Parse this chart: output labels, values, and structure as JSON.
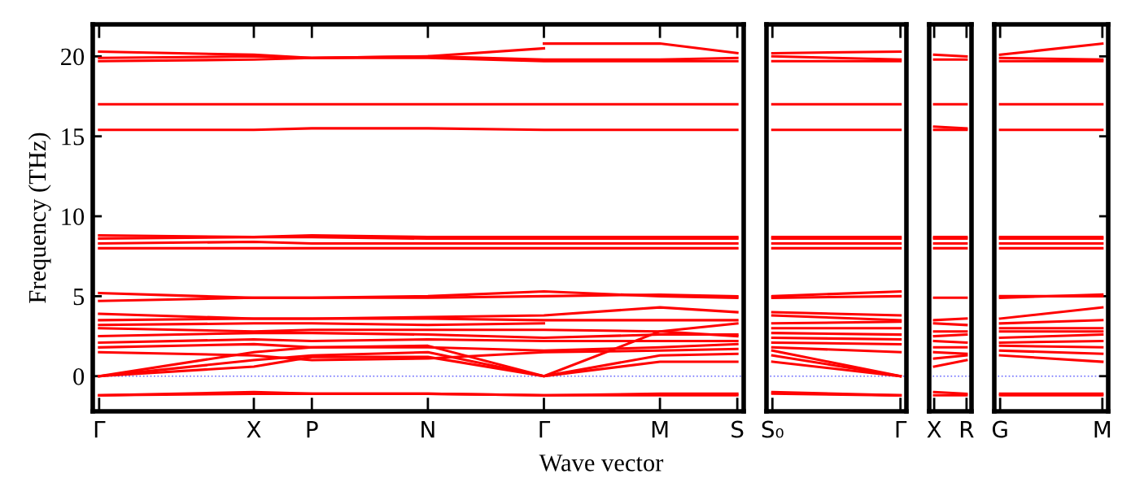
{
  "chart_data": [
    {
      "type": "line",
      "ylabel": "Frequency (THz)",
      "xlabel": "Wave vector",
      "color": "#ff0000",
      "ylim": [
        -2.2,
        22
      ],
      "yticks": [
        0,
        5,
        10,
        15,
        20
      ],
      "categories": [
        "Γ",
        null,
        null,
        null,
        null,
        null,
        null,
        null,
        "X",
        null,
        null,
        "P",
        null,
        null,
        null,
        null,
        null,
        "N",
        null,
        null,
        null,
        null,
        null,
        "Γ",
        null,
        null,
        null,
        null,
        null,
        "M",
        null,
        null,
        null,
        "S"
      ],
      "grid": false,
      "marker": "none",
      "line_style": "solid",
      "ref_lines": [
        {
          "axis": "y",
          "value": 0,
          "color": "#6666ff",
          "line_style": "dotted"
        }
      ],
      "series": [
        {
          "values": [
            -1.2,
            null,
            null,
            null,
            null,
            null,
            null,
            null,
            -1.0,
            null,
            null,
            -1.1,
            null,
            null,
            null,
            null,
            null,
            -1.1,
            null,
            null,
            null,
            null,
            null,
            -1.2,
            null,
            null,
            null,
            null,
            null,
            -1.1,
            null,
            null,
            null,
            -1.1
          ]
        },
        {
          "values": [
            -1.2,
            null,
            null,
            null,
            null,
            null,
            null,
            null,
            -1.1,
            null,
            null,
            -1.1,
            null,
            null,
            null,
            null,
            null,
            -1.1,
            null,
            null,
            null,
            null,
            null,
            -1.2,
            null,
            null,
            null,
            null,
            null,
            -1.2,
            null,
            null,
            null,
            -1.2
          ]
        },
        {
          "values": [
            0,
            null,
            null,
            null,
            null,
            null,
            null,
            null,
            0.6,
            null,
            null,
            1.2,
            null,
            null,
            null,
            null,
            null,
            1.2,
            null,
            null,
            null,
            null,
            null,
            0,
            null,
            null,
            null,
            null,
            null,
            2.8,
            null,
            null,
            null,
            3.3
          ]
        },
        {
          "values": [
            0,
            null,
            null,
            null,
            null,
            null,
            null,
            null,
            1.0,
            null,
            null,
            1.3,
            null,
            null,
            null,
            null,
            null,
            1.5,
            null,
            null,
            null,
            null,
            null,
            0,
            null,
            null,
            null,
            null,
            null,
            0.9,
            null,
            null,
            null,
            0.9
          ]
        },
        {
          "values": [
            0,
            null,
            null,
            null,
            null,
            null,
            null,
            null,
            1.5,
            null,
            null,
            1.8,
            null,
            null,
            null,
            null,
            null,
            1.9,
            null,
            null,
            null,
            null,
            null,
            0,
            null,
            null,
            null,
            null,
            null,
            1.3,
            null,
            null,
            null,
            1.4
          ]
        },
        {
          "values": [
            1.5,
            null,
            null,
            null,
            null,
            null,
            null,
            null,
            1.3,
            null,
            null,
            1.0,
            null,
            null,
            null,
            null,
            null,
            1.1,
            null,
            null,
            null,
            null,
            null,
            1.5,
            null,
            null,
            null,
            null,
            null,
            1.6,
            null,
            null,
            null,
            1.7
          ]
        },
        {
          "values": [
            1.8,
            null,
            null,
            null,
            null,
            null,
            null,
            null,
            2.0,
            null,
            null,
            1.8,
            null,
            null,
            null,
            null,
            null,
            1.8,
            null,
            null,
            null,
            null,
            null,
            1.6,
            null,
            null,
            null,
            null,
            null,
            1.8,
            null,
            null,
            null,
            2.0
          ]
        },
        {
          "values": [
            2.1,
            null,
            null,
            null,
            null,
            null,
            null,
            null,
            2.3,
            null,
            null,
            2.2,
            null,
            null,
            null,
            null,
            null,
            2.3,
            null,
            null,
            null,
            null,
            null,
            2.2,
            null,
            null,
            null,
            null,
            null,
            2.2,
            null,
            null,
            null,
            2.2
          ]
        },
        {
          "values": [
            2.5,
            null,
            null,
            null,
            null,
            null,
            null,
            null,
            2.7,
            null,
            null,
            2.7,
            null,
            null,
            null,
            null,
            null,
            2.6,
            null,
            null,
            null,
            null,
            null,
            2.4,
            null,
            null,
            null,
            null,
            null,
            2.6,
            null,
            null,
            null,
            2.6
          ]
        },
        {
          "values": [
            3.0,
            null,
            null,
            null,
            null,
            null,
            null,
            null,
            2.8,
            null,
            null,
            2.9,
            null,
            null,
            null,
            null,
            null,
            2.9,
            null,
            null,
            null,
            null,
            null,
            2.9,
            null,
            null,
            null,
            null,
            null,
            2.8,
            null,
            null,
            null,
            2.5
          ]
        },
        {
          "values": [
            3.2,
            null,
            null,
            null,
            null,
            null,
            null,
            null,
            3.3,
            null,
            null,
            3.3,
            null,
            null,
            null,
            null,
            null,
            3.2,
            null,
            null,
            null,
            null,
            null,
            3.3,
            null,
            null,
            null,
            null,
            null,
            null,
            null,
            null,
            null,
            null
          ]
        },
        {
          "values": [
            3.5,
            null,
            null,
            null,
            null,
            null,
            null,
            null,
            3.6,
            null,
            null,
            3.6,
            null,
            null,
            null,
            null,
            null,
            3.6,
            null,
            null,
            null,
            null,
            null,
            3.5,
            null,
            null,
            null,
            null,
            null,
            3.5,
            null,
            null,
            null,
            3.5
          ]
        },
        {
          "values": [
            3.9,
            null,
            null,
            null,
            null,
            null,
            null,
            null,
            3.6,
            null,
            null,
            3.6,
            null,
            null,
            null,
            null,
            null,
            3.7,
            null,
            null,
            null,
            null,
            null,
            3.8,
            null,
            null,
            null,
            null,
            null,
            4.3,
            null,
            null,
            null,
            4.0
          ]
        },
        {
          "values": [
            4.7,
            null,
            null,
            null,
            null,
            null,
            null,
            null,
            4.9,
            null,
            null,
            4.9,
            null,
            null,
            null,
            null,
            null,
            4.9,
            null,
            null,
            null,
            null,
            null,
            5.0,
            null,
            null,
            null,
            null,
            null,
            5.1,
            null,
            null,
            null,
            5.0
          ]
        },
        {
          "values": [
            5.2,
            null,
            null,
            null,
            null,
            null,
            null,
            null,
            4.9,
            null,
            null,
            4.9,
            null,
            null,
            null,
            null,
            null,
            5.0,
            null,
            null,
            null,
            null,
            null,
            5.3,
            null,
            null,
            null,
            null,
            null,
            5.0,
            null,
            null,
            null,
            4.9
          ]
        },
        {
          "values": [
            8.0,
            null,
            null,
            null,
            null,
            null,
            null,
            null,
            8.0,
            null,
            null,
            8.0,
            null,
            null,
            null,
            null,
            null,
            8.0,
            null,
            null,
            null,
            null,
            null,
            8.0,
            null,
            null,
            null,
            null,
            null,
            8.0,
            null,
            null,
            null,
            8.0
          ]
        },
        {
          "values": [
            8.3,
            null,
            null,
            null,
            null,
            null,
            null,
            null,
            8.4,
            null,
            null,
            8.3,
            null,
            null,
            null,
            null,
            null,
            8.3,
            null,
            null,
            null,
            null,
            null,
            8.3,
            null,
            null,
            null,
            null,
            null,
            8.3,
            null,
            null,
            null,
            8.3
          ]
        },
        {
          "values": [
            8.6,
            null,
            null,
            null,
            null,
            null,
            null,
            null,
            8.7,
            null,
            null,
            8.7,
            null,
            null,
            null,
            null,
            null,
            8.6,
            null,
            null,
            null,
            null,
            null,
            8.6,
            null,
            null,
            null,
            null,
            null,
            8.6,
            null,
            null,
            null,
            8.6
          ]
        },
        {
          "values": [
            8.8,
            null,
            null,
            null,
            null,
            null,
            null,
            null,
            8.7,
            null,
            null,
            8.8,
            null,
            null,
            null,
            null,
            null,
            8.7,
            null,
            null,
            null,
            null,
            null,
            8.7,
            null,
            null,
            null,
            null,
            null,
            8.7,
            null,
            null,
            null,
            8.7
          ]
        },
        {
          "values": [
            15.4,
            null,
            null,
            null,
            null,
            null,
            null,
            null,
            15.4,
            null,
            null,
            15.5,
            null,
            null,
            null,
            null,
            null,
            15.5,
            null,
            null,
            null,
            null,
            null,
            15.4,
            null,
            null,
            null,
            null,
            null,
            15.4,
            null,
            null,
            null,
            15.4
          ]
        },
        {
          "values": [
            17.0,
            null,
            null,
            null,
            null,
            null,
            null,
            null,
            17.0,
            null,
            null,
            17.0,
            null,
            null,
            null,
            null,
            null,
            17.0,
            null,
            null,
            null,
            null,
            null,
            17.0,
            null,
            null,
            null,
            null,
            null,
            17.0,
            null,
            null,
            null,
            17.0
          ]
        },
        {
          "values": [
            19.7,
            null,
            null,
            null,
            null,
            null,
            null,
            null,
            19.8,
            null,
            null,
            19.9,
            null,
            null,
            null,
            null,
            null,
            19.9,
            null,
            null,
            null,
            null,
            null,
            19.7,
            null,
            null,
            null,
            null,
            null,
            19.7,
            null,
            null,
            null,
            19.7
          ]
        },
        {
          "values": [
            19.9,
            null,
            null,
            null,
            null,
            null,
            null,
            null,
            20.0,
            null,
            null,
            19.9,
            null,
            null,
            null,
            null,
            null,
            20.0,
            null,
            null,
            null,
            null,
            null,
            19.8,
            null,
            null,
            null,
            null,
            null,
            19.8,
            null,
            null,
            null,
            19.9
          ]
        },
        {
          "values": [
            20.3,
            null,
            null,
            null,
            null,
            null,
            null,
            null,
            20.1,
            null,
            null,
            19.9,
            null,
            null,
            null,
            null,
            null,
            20.0,
            null,
            null,
            null,
            null,
            null,
            20.5,
            null,
            null,
            null,
            null,
            null,
            null,
            null,
            null,
            null,
            null
          ]
        },
        {
          "values": [
            null,
            null,
            null,
            null,
            null,
            null,
            null,
            null,
            null,
            null,
            null,
            null,
            null,
            null,
            null,
            null,
            null,
            null,
            null,
            null,
            null,
            null,
            null,
            20.8,
            null,
            null,
            null,
            null,
            null,
            20.8,
            null,
            null,
            null,
            20.2
          ]
        }
      ]
    },
    {
      "type": "line",
      "color": "#ff0000",
      "ylim": [
        -2.2,
        22
      ],
      "tick_labels": "x",
      "categories": [
        "S₀",
        null,
        null,
        null,
        null,
        null,
        null,
        null,
        null,
        null,
        null,
        null,
        null,
        null,
        "Γ"
      ],
      "grid": false,
      "marker": "none",
      "line_style": "solid",
      "ref_lines": [
        {
          "axis": "y",
          "value": 0,
          "color": "#6666ff",
          "line_style": "dotted"
        }
      ],
      "series": [
        {
          "values": [
            -1.0,
            null,
            null,
            null,
            null,
            null,
            null,
            null,
            null,
            null,
            null,
            null,
            null,
            null,
            -1.2
          ]
        },
        {
          "values": [
            -1.1,
            null,
            null,
            null,
            null,
            null,
            null,
            null,
            null,
            null,
            null,
            null,
            null,
            null,
            -1.2
          ]
        },
        {
          "values": [
            0.9,
            null,
            null,
            null,
            null,
            null,
            null,
            null,
            null,
            null,
            null,
            null,
            null,
            null,
            0
          ]
        },
        {
          "values": [
            1.3,
            null,
            null,
            null,
            null,
            null,
            null,
            null,
            null,
            null,
            null,
            null,
            null,
            null,
            0
          ]
        },
        {
          "values": [
            1.6,
            null,
            null,
            null,
            null,
            null,
            null,
            null,
            null,
            null,
            null,
            null,
            null,
            null,
            0
          ]
        },
        {
          "values": [
            1.8,
            null,
            null,
            null,
            null,
            null,
            null,
            null,
            null,
            null,
            null,
            null,
            null,
            null,
            1.5
          ]
        },
        {
          "values": [
            2.1,
            null,
            null,
            null,
            null,
            null,
            null,
            null,
            null,
            null,
            null,
            null,
            null,
            null,
            2.0
          ]
        },
        {
          "values": [
            2.4,
            null,
            null,
            null,
            null,
            null,
            null,
            null,
            null,
            null,
            null,
            null,
            null,
            null,
            2.3
          ]
        },
        {
          "values": [
            2.7,
            null,
            null,
            null,
            null,
            null,
            null,
            null,
            null,
            null,
            null,
            null,
            null,
            null,
            2.6
          ]
        },
        {
          "values": [
            3.0,
            null,
            null,
            null,
            null,
            null,
            null,
            null,
            null,
            null,
            null,
            null,
            null,
            null,
            3.0
          ]
        },
        {
          "values": [
            3.3,
            null,
            null,
            null,
            null,
            null,
            null,
            null,
            null,
            null,
            null,
            null,
            null,
            null,
            3.4
          ]
        },
        {
          "values": [
            3.8,
            null,
            null,
            null,
            null,
            null,
            null,
            null,
            null,
            null,
            null,
            null,
            null,
            null,
            3.5
          ]
        },
        {
          "values": [
            4.0,
            null,
            null,
            null,
            null,
            null,
            null,
            null,
            null,
            null,
            null,
            null,
            null,
            null,
            3.8
          ]
        },
        {
          "values": [
            4.9,
            null,
            null,
            null,
            null,
            null,
            null,
            null,
            null,
            null,
            null,
            null,
            null,
            null,
            5.0
          ]
        },
        {
          "values": [
            5.0,
            null,
            null,
            null,
            null,
            null,
            null,
            null,
            null,
            null,
            null,
            null,
            null,
            null,
            5.3
          ]
        },
        {
          "values": [
            8.0,
            null,
            null,
            null,
            null,
            null,
            null,
            null,
            null,
            null,
            null,
            null,
            null,
            null,
            8.0
          ]
        },
        {
          "values": [
            8.3,
            null,
            null,
            null,
            null,
            null,
            null,
            null,
            null,
            null,
            null,
            null,
            null,
            null,
            8.3
          ]
        },
        {
          "values": [
            8.6,
            null,
            null,
            null,
            null,
            null,
            null,
            null,
            null,
            null,
            null,
            null,
            null,
            null,
            8.6
          ]
        },
        {
          "values": [
            8.7,
            null,
            null,
            null,
            null,
            null,
            null,
            null,
            null,
            null,
            null,
            null,
            null,
            null,
            8.7
          ]
        },
        {
          "values": [
            15.4,
            null,
            null,
            null,
            null,
            null,
            null,
            null,
            null,
            null,
            null,
            null,
            null,
            null,
            15.4
          ]
        },
        {
          "values": [
            17.0,
            null,
            null,
            null,
            null,
            null,
            null,
            null,
            null,
            null,
            null,
            null,
            null,
            null,
            17.0
          ]
        },
        {
          "values": [
            19.7,
            null,
            null,
            null,
            null,
            null,
            null,
            null,
            null,
            null,
            null,
            null,
            null,
            null,
            19.7
          ]
        },
        {
          "values": [
            20.0,
            null,
            null,
            null,
            null,
            null,
            null,
            null,
            null,
            null,
            null,
            null,
            null,
            null,
            19.8
          ]
        },
        {
          "values": [
            20.2,
            null,
            null,
            null,
            null,
            null,
            null,
            null,
            null,
            null,
            null,
            null,
            null,
            null,
            20.3
          ]
        }
      ]
    },
    {
      "type": "line",
      "color": "#ff0000",
      "ylim": [
        -2.2,
        22
      ],
      "tick_labels": "x",
      "categories": [
        "X",
        null,
        null,
        null,
        "R"
      ],
      "grid": false,
      "marker": "none",
      "line_style": "solid",
      "ref_lines": [
        {
          "axis": "y",
          "value": 0,
          "color": "#6666ff",
          "line_style": "dotted"
        }
      ],
      "series": [
        {
          "values": [
            -1.0,
            null,
            null,
            null,
            -1.1
          ]
        },
        {
          "values": [
            -1.2,
            null,
            null,
            null,
            -1.2
          ]
        },
        {
          "values": [
            0.6,
            null,
            null,
            null,
            1.0
          ]
        },
        {
          "values": [
            1.1,
            null,
            null,
            null,
            1.3
          ]
        },
        {
          "values": [
            1.5,
            null,
            null,
            null,
            1.4
          ]
        },
        {
          "values": [
            1.8,
            null,
            null,
            null,
            1.8
          ]
        },
        {
          "values": [
            2.2,
            null,
            null,
            null,
            2.1
          ]
        },
        {
          "values": [
            2.5,
            null,
            null,
            null,
            2.6
          ]
        },
        {
          "values": [
            2.8,
            null,
            null,
            null,
            2.8
          ]
        },
        {
          "values": [
            3.3,
            null,
            null,
            null,
            3.2
          ]
        },
        {
          "values": [
            3.5,
            null,
            null,
            null,
            3.6
          ]
        },
        {
          "values": [
            4.9,
            null,
            null,
            null,
            4.9
          ]
        },
        {
          "values": [
            8.0,
            null,
            null,
            null,
            8.0
          ]
        },
        {
          "values": [
            8.3,
            null,
            null,
            null,
            8.3
          ]
        },
        {
          "values": [
            8.6,
            null,
            null,
            null,
            8.6
          ]
        },
        {
          "values": [
            8.7,
            null,
            null,
            null,
            8.7
          ]
        },
        {
          "values": [
            15.4,
            null,
            null,
            null,
            15.4
          ]
        },
        {
          "values": [
            15.6,
            null,
            null,
            null,
            15.5
          ]
        },
        {
          "values": [
            17.0,
            null,
            null,
            null,
            17.0
          ]
        },
        {
          "values": [
            19.8,
            null,
            null,
            null,
            19.8
          ]
        },
        {
          "values": [
            20.1,
            null,
            null,
            null,
            20.0
          ]
        }
      ]
    },
    {
      "type": "line",
      "color": "#ff0000",
      "ylim": [
        -2.2,
        22
      ],
      "tick_labels": "x",
      "yticks": [
        {
          "value": 0,
          "label": null
        },
        {
          "value": 5,
          "label": null
        },
        {
          "value": 10,
          "label": null
        },
        {
          "value": 15,
          "label": null
        },
        {
          "value": 20,
          "label": null
        }
      ],
      "categories": [
        "G",
        null,
        null,
        null,
        null,
        null,
        null,
        null,
        null,
        null,
        null,
        "M"
      ],
      "grid": false,
      "marker": "none",
      "line_style": "solid",
      "ref_lines": [
        {
          "axis": "y",
          "value": 0,
          "color": "#6666ff",
          "line_style": "dotted"
        }
      ],
      "series": [
        {
          "values": [
            -1.1,
            null,
            null,
            null,
            null,
            null,
            null,
            null,
            null,
            null,
            null,
            -1.1
          ]
        },
        {
          "values": [
            -1.2,
            null,
            null,
            null,
            null,
            null,
            null,
            null,
            null,
            null,
            null,
            -1.2
          ]
        },
        {
          "values": [
            1.3,
            null,
            null,
            null,
            null,
            null,
            null,
            null,
            null,
            null,
            null,
            0.9
          ]
        },
        {
          "values": [
            1.6,
            null,
            null,
            null,
            null,
            null,
            null,
            null,
            null,
            null,
            null,
            1.4
          ]
        },
        {
          "values": [
            1.9,
            null,
            null,
            null,
            null,
            null,
            null,
            null,
            null,
            null,
            null,
            1.8
          ]
        },
        {
          "values": [
            2.1,
            null,
            null,
            null,
            null,
            null,
            null,
            null,
            null,
            null,
            null,
            2.2
          ]
        },
        {
          "values": [
            2.4,
            null,
            null,
            null,
            null,
            null,
            null,
            null,
            null,
            null,
            null,
            2.6
          ]
        },
        {
          "values": [
            2.8,
            null,
            null,
            null,
            null,
            null,
            null,
            null,
            null,
            null,
            null,
            2.8
          ]
        },
        {
          "values": [
            3.0,
            null,
            null,
            null,
            null,
            null,
            null,
            null,
            null,
            null,
            null,
            3.0
          ]
        },
        {
          "values": [
            3.3,
            null,
            null,
            null,
            null,
            null,
            null,
            null,
            null,
            null,
            null,
            3.5
          ]
        },
        {
          "values": [
            3.6,
            null,
            null,
            null,
            null,
            null,
            null,
            null,
            null,
            null,
            null,
            4.3
          ]
        },
        {
          "values": [
            4.9,
            null,
            null,
            null,
            null,
            null,
            null,
            null,
            null,
            null,
            null,
            5.1
          ]
        },
        {
          "values": [
            5.0,
            null,
            null,
            null,
            null,
            null,
            null,
            null,
            null,
            null,
            null,
            5.0
          ]
        },
        {
          "values": [
            8.0,
            null,
            null,
            null,
            null,
            null,
            null,
            null,
            null,
            null,
            null,
            8.0
          ]
        },
        {
          "values": [
            8.3,
            null,
            null,
            null,
            null,
            null,
            null,
            null,
            null,
            null,
            null,
            8.3
          ]
        },
        {
          "values": [
            8.6,
            null,
            null,
            null,
            null,
            null,
            null,
            null,
            null,
            null,
            null,
            8.6
          ]
        },
        {
          "values": [
            8.7,
            null,
            null,
            null,
            null,
            null,
            null,
            null,
            null,
            null,
            null,
            8.7
          ]
        },
        {
          "values": [
            15.4,
            null,
            null,
            null,
            null,
            null,
            null,
            null,
            null,
            null,
            null,
            15.4
          ]
        },
        {
          "values": [
            17.0,
            null,
            null,
            null,
            null,
            null,
            null,
            null,
            null,
            null,
            null,
            17.0
          ]
        },
        {
          "values": [
            19.7,
            null,
            null,
            null,
            null,
            null,
            null,
            null,
            null,
            null,
            null,
            19.7
          ]
        },
        {
          "values": [
            19.9,
            null,
            null,
            null,
            null,
            null,
            null,
            null,
            null,
            null,
            null,
            19.8
          ]
        },
        {
          "values": [
            20.1,
            null,
            null,
            null,
            null,
            null,
            null,
            null,
            null,
            null,
            null,
            20.8
          ]
        }
      ]
    }
  ]
}
